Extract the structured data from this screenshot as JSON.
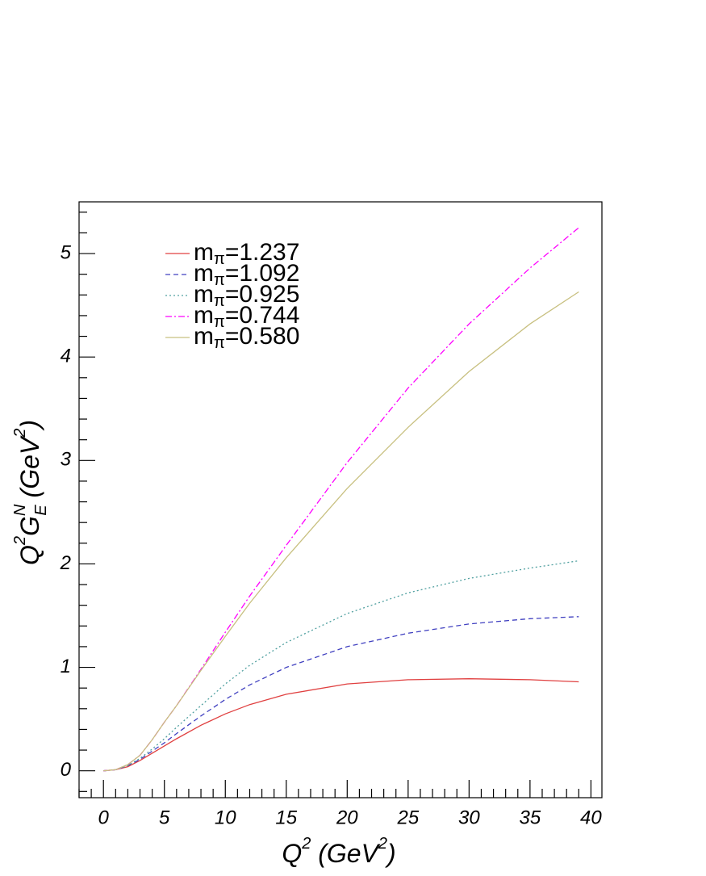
{
  "chart_data": {
    "type": "line",
    "x_label": [
      "Q",
      "2",
      " (GeV",
      "2",
      ")"
    ],
    "y_label": [
      "Q",
      "2",
      "G",
      "N",
      "E",
      " (GeV",
      "2",
      ")"
    ],
    "x": [
      0,
      1,
      2,
      3,
      4,
      5,
      6,
      8,
      10,
      12,
      15,
      20,
      25,
      30,
      35,
      39
    ],
    "series": [
      {
        "name": "mπ=1.237",
        "color": "#e04040",
        "dash": "solid",
        "values": [
          0,
          0.01,
          0.04,
          0.1,
          0.17,
          0.24,
          0.31,
          0.44,
          0.55,
          0.64,
          0.74,
          0.84,
          0.88,
          0.89,
          0.88,
          0.86
        ]
      },
      {
        "name": "mπ=1.092",
        "color": "#4040c0",
        "dash": "dashed",
        "values": [
          0,
          0.01,
          0.05,
          0.11,
          0.19,
          0.27,
          0.36,
          0.53,
          0.69,
          0.83,
          1.0,
          1.2,
          1.33,
          1.42,
          1.47,
          1.49
        ]
      },
      {
        "name": "mπ=0.925",
        "color": "#50a0a0",
        "dash": "dotted",
        "values": [
          0,
          0.01,
          0.05,
          0.12,
          0.21,
          0.31,
          0.42,
          0.63,
          0.84,
          1.02,
          1.24,
          1.52,
          1.72,
          1.86,
          1.96,
          2.03
        ]
      },
      {
        "name": "mπ=0.744",
        "color": "#ff00ff",
        "dash": "dashdot",
        "values": [
          0,
          0.01,
          0.06,
          0.15,
          0.3,
          0.47,
          0.63,
          0.98,
          1.34,
          1.69,
          2.18,
          2.98,
          3.7,
          4.32,
          4.86,
          5.25
        ]
      },
      {
        "name": "mπ=0.580",
        "color": "#c8c080",
        "dash": "solid",
        "values": [
          0,
          0.01,
          0.06,
          0.15,
          0.3,
          0.47,
          0.63,
          0.97,
          1.3,
          1.62,
          2.06,
          2.73,
          3.32,
          3.86,
          4.32,
          4.63
        ]
      }
    ],
    "xlim": [
      -2,
      40.9
    ],
    "ylim": [
      -0.26,
      5.5
    ],
    "xticks": [
      0,
      5,
      10,
      15,
      20,
      25,
      30,
      35,
      40
    ],
    "yticks": [
      0,
      1,
      2,
      3,
      4,
      5
    ],
    "legend": "upper left"
  }
}
